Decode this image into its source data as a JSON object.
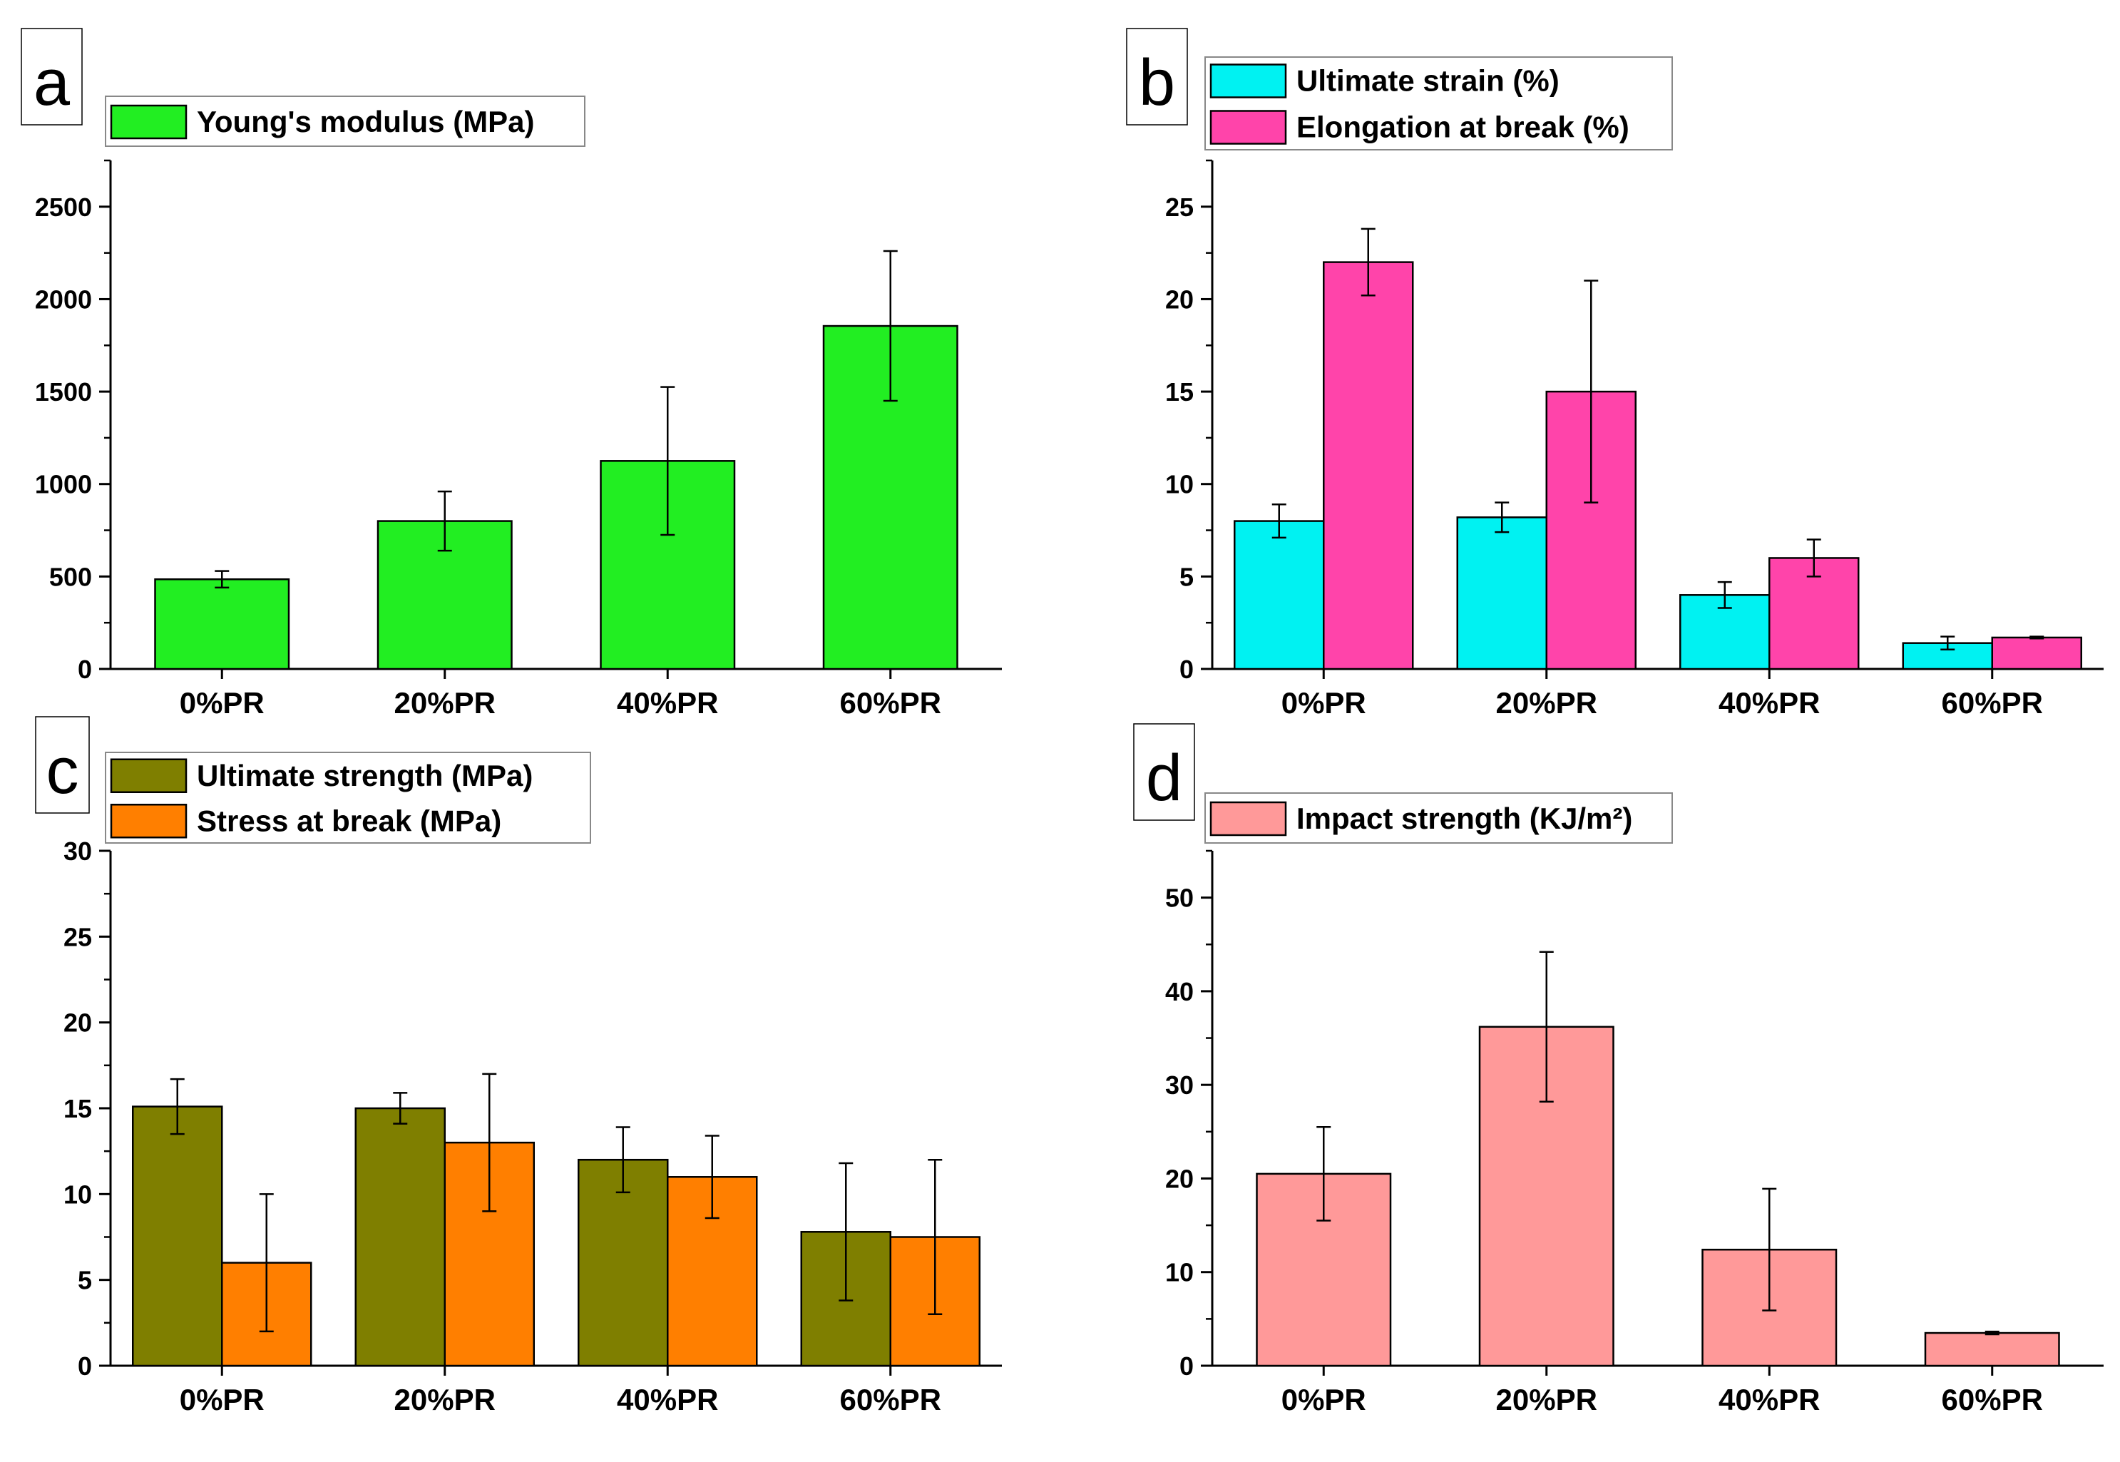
{
  "chart_data": [
    {
      "id": "a",
      "panel_label": "a",
      "type": "bar",
      "title": "",
      "xlabel": "",
      "ylabel": "",
      "categories": [
        "0%PR",
        "20%PR",
        "40%PR",
        "60%PR"
      ],
      "series": [
        {
          "name": "Young's modulus (MPa)",
          "color": "#22ee22",
          "values": [
            485,
            800,
            1125,
            1855
          ],
          "errors": [
            45,
            160,
            400,
            405
          ]
        }
      ],
      "ylim": [
        0,
        2750
      ],
      "yticks": [
        0,
        500,
        1000,
        1500,
        2000,
        2500
      ],
      "yminor": 250,
      "legend_position": "top-left"
    },
    {
      "id": "b",
      "panel_label": "b",
      "type": "bar",
      "title": "",
      "xlabel": "",
      "ylabel": "",
      "categories": [
        "0%PR",
        "20%PR",
        "40%PR",
        "60%PR"
      ],
      "series": [
        {
          "name": "Ultimate strain (%)",
          "color": "#00f2f2",
          "values": [
            8.0,
            8.2,
            4.0,
            1.4
          ],
          "errors": [
            0.9,
            0.8,
            0.7,
            0.35
          ]
        },
        {
          "name": "Elongation at break (%)",
          "color": "#ff44aa",
          "values": [
            22.0,
            15.0,
            6.0,
            1.7
          ],
          "errors": [
            1.8,
            6.0,
            1.0,
            0.05
          ]
        }
      ],
      "ylim": [
        0,
        27.5
      ],
      "yticks": [
        0,
        5,
        10,
        15,
        20,
        25
      ],
      "yminor": 2.5,
      "legend_position": "top-left"
    },
    {
      "id": "c",
      "panel_label": "c",
      "type": "bar",
      "title": "",
      "xlabel": "",
      "ylabel": "",
      "categories": [
        "0%PR",
        "20%PR",
        "40%PR",
        "60%PR"
      ],
      "series": [
        {
          "name": " Ultimate strength (MPa)",
          "color": "#7f7f00",
          "values": [
            15.1,
            15.0,
            12.0,
            7.8
          ],
          "errors": [
            1.6,
            0.9,
            1.9,
            4.0
          ]
        },
        {
          "name": "Stress at break (MPa)",
          "color": "#ff7f00",
          "values": [
            6.0,
            13.0,
            11.0,
            7.5
          ],
          "errors": [
            4.0,
            4.0,
            2.4,
            4.5
          ]
        }
      ],
      "ylim": [
        0,
        30
      ],
      "yticks": [
        0,
        5,
        10,
        15,
        20,
        25,
        30
      ],
      "yminor": 2.5,
      "legend_position": "top-left"
    },
    {
      "id": "d",
      "panel_label": "d",
      "type": "bar",
      "title": "",
      "xlabel": "",
      "ylabel": "",
      "categories": [
        "0%PR",
        "20%PR",
        "40%PR",
        "60%PR"
      ],
      "series": [
        {
          "name": "Impact strength (KJ/m²)",
          "color": "#ff9999",
          "values": [
            20.5,
            36.2,
            12.4,
            3.5
          ],
          "errors": [
            5.0,
            8.0,
            6.5,
            0.15
          ]
        }
      ],
      "ylim": [
        0,
        55
      ],
      "yticks": [
        0,
        10,
        20,
        30,
        40,
        50
      ],
      "yminor": 5,
      "legend_position": "top-left"
    }
  ]
}
